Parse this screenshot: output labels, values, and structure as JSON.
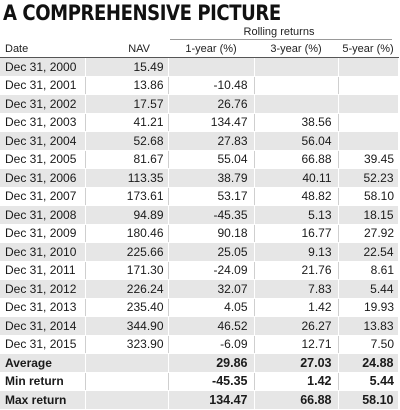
{
  "title": "A COMPREHENSIVE PICTURE",
  "group_header": "Rolling returns",
  "columns": [
    "Date",
    "NAV",
    "1-year (%)",
    "3-year (%)",
    "5-year (%)"
  ],
  "rows": [
    [
      "Dec 31, 2000",
      "15.49",
      "",
      "",
      ""
    ],
    [
      "Dec 31, 2001",
      "13.86",
      "-10.48",
      "",
      ""
    ],
    [
      "Dec 31, 2002",
      "17.57",
      "26.76",
      "",
      ""
    ],
    [
      "Dec 31, 2003",
      "41.21",
      "134.47",
      "38.56",
      ""
    ],
    [
      "Dec 31, 2004",
      "52.68",
      "27.83",
      "56.04",
      ""
    ],
    [
      "Dec 31, 2005",
      "81.67",
      "55.04",
      "66.88",
      "39.45"
    ],
    [
      "Dec 31, 2006",
      "113.35",
      "38.79",
      "40.11",
      "52.23"
    ],
    [
      "Dec 31, 2007",
      "173.61",
      "53.17",
      "48.82",
      "58.10"
    ],
    [
      "Dec 31, 2008",
      "94.89",
      "-45.35",
      "5.13",
      "18.15"
    ],
    [
      "Dec 31, 2009",
      "180.46",
      "90.18",
      "16.77",
      "27.92"
    ],
    [
      "Dec 31, 2010",
      "225.66",
      "25.05",
      "9.13",
      "22.54"
    ],
    [
      "Dec 31, 2011",
      "171.30",
      "-24.09",
      "21.76",
      "8.61"
    ],
    [
      "Dec 31, 2012",
      "226.24",
      "32.07",
      "7.83",
      "5.44"
    ],
    [
      "Dec 31, 2013",
      "235.40",
      "4.05",
      "1.42",
      "19.93"
    ],
    [
      "Dec 31, 2014",
      "344.90",
      "46.52",
      "26.27",
      "13.83"
    ],
    [
      "Dec 31, 2015",
      "323.90",
      "-6.09",
      "12.71",
      "7.50"
    ]
  ],
  "summary": [
    [
      "Average",
      "",
      "29.86",
      "27.03",
      "24.88"
    ],
    [
      "Min return",
      "",
      "-45.35",
      "1.42",
      "5.44"
    ],
    [
      "Max return",
      "",
      "134.47",
      "66.88",
      "58.10"
    ]
  ],
  "colors": {
    "stripe": "#e6e6e6",
    "background": "#ffffff",
    "text": "#1a1a1a"
  }
}
